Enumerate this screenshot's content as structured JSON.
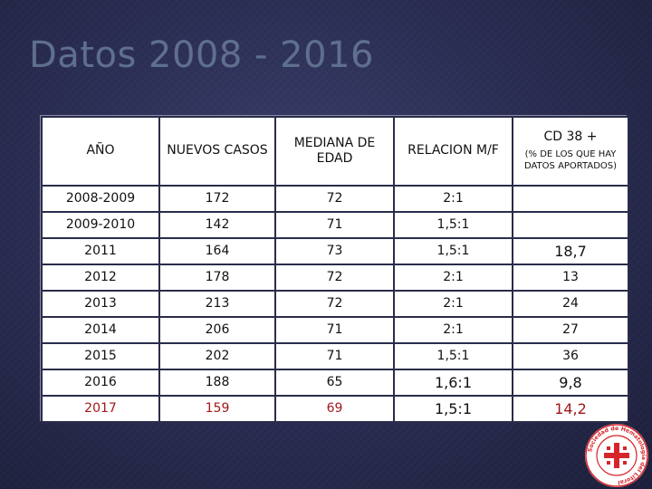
{
  "title": "Datos 2008 - 2016",
  "table": {
    "headers": {
      "year": "AÑO",
      "new_cases": "NUEVOS CASOS",
      "median_age": "MEDIANA DE EDAD",
      "ratio": "RELACION M/F",
      "cd38": "CD 38 +",
      "cd38_note": "(% DE LOS QUE HAY DATOS APORTADOS)"
    },
    "rows": [
      {
        "year": "2008-2009",
        "new_cases": "172",
        "median_age": "72",
        "ratio": "2:1",
        "cd38": ""
      },
      {
        "year": "2009-2010",
        "new_cases": "142",
        "median_age": "71",
        "ratio": "1,5:1",
        "cd38": ""
      },
      {
        "year": "2011",
        "new_cases": "164",
        "median_age": "73",
        "ratio": "1,5:1",
        "cd38": "18,7"
      },
      {
        "year": "2012",
        "new_cases": "178",
        "median_age": "72",
        "ratio": "2:1",
        "cd38": "13"
      },
      {
        "year": "2013",
        "new_cases": "213",
        "median_age": "72",
        "ratio": "2:1",
        "cd38": "24"
      },
      {
        "year": "2014",
        "new_cases": "206",
        "median_age": "71",
        "ratio": "2:1",
        "cd38": "27"
      },
      {
        "year": "2015",
        "new_cases": "202",
        "median_age": "71",
        "ratio": "1,5:1",
        "cd38": "36"
      },
      {
        "year": "2016",
        "new_cases": "188",
        "median_age": "65",
        "ratio": "1,6:1",
        "cd38": "9,8"
      },
      {
        "year": "2017",
        "new_cases": "159",
        "median_age": "69",
        "ratio": "1,5:1",
        "cd38": "14,2"
      }
    ]
  },
  "colors": {
    "title": "#5f6f8e",
    "highlight_row": "#a3171b",
    "logo_red": "#d6262b"
  },
  "logo": {
    "text": "Sociedad de Hematología del Litoral",
    "icon": "hematology-society-logo"
  }
}
